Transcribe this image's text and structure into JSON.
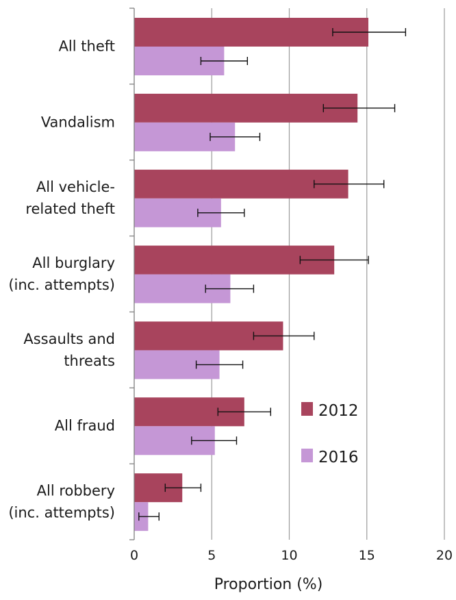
{
  "chart_data": {
    "type": "bar",
    "orientation": "horizontal",
    "categories": [
      [
        "All theft"
      ],
      [
        "Vandalism"
      ],
      [
        "All vehicle-",
        "related theft"
      ],
      [
        "All burglary",
        "(inc. attempts)"
      ],
      [
        "Assaults and",
        "threats"
      ],
      [
        "All fraud"
      ],
      [
        "All robbery",
        "(inc. attempts)"
      ]
    ],
    "series": [
      {
        "name": "2012",
        "color": "#a8445d",
        "values": [
          15.1,
          14.4,
          13.8,
          12.9,
          9.6,
          7.1,
          3.1
        ],
        "error_low": [
          12.8,
          12.2,
          11.6,
          10.7,
          7.7,
          5.4,
          2.0
        ],
        "error_high": [
          17.5,
          16.8,
          16.1,
          15.1,
          11.6,
          8.8,
          4.3
        ]
      },
      {
        "name": "2016",
        "color": "#c597d6",
        "values": [
          5.8,
          6.5,
          5.6,
          6.2,
          5.5,
          5.2,
          0.9
        ],
        "error_low": [
          4.3,
          4.9,
          4.1,
          4.6,
          4.0,
          3.7,
          0.3
        ],
        "error_high": [
          7.3,
          8.1,
          7.1,
          7.7,
          7.0,
          6.6,
          1.6
        ]
      }
    ],
    "xlabel": "Proportion (%)",
    "ylabel": "",
    "title": "",
    "xlim": [
      0,
      20
    ],
    "xticks": [
      0,
      5,
      10,
      15,
      20
    ],
    "grid": true,
    "legend_position": "lower-right"
  }
}
